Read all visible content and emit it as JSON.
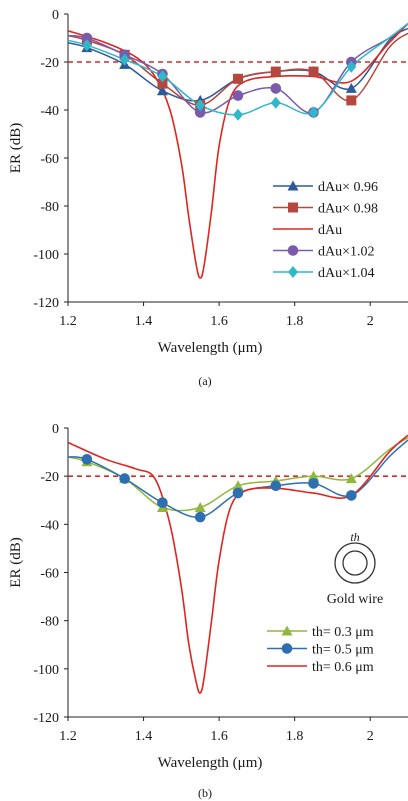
{
  "chart_data": [
    {
      "type": "line",
      "panel_label": "(a)",
      "xlabel": "Wavelength (μm)",
      "ylabel": "ER (dB)",
      "xlim": [
        1.2,
        2.1
      ],
      "ylim": [
        -120,
        0
      ],
      "xticks": [
        1.2,
        1.4,
        1.6,
        1.8,
        2.0
      ],
      "xtick_labels": [
        "1.2",
        "1.4",
        "1.6",
        "1.8",
        "2"
      ],
      "yticks": [
        0,
        -20,
        -40,
        -60,
        -80,
        -100,
        -120
      ],
      "ytick_labels": [
        "0",
        "-20",
        "-40",
        "-60",
        "-80",
        "-100",
        "-120"
      ],
      "reference_line": {
        "y": -20,
        "style": "dashed",
        "color": "#d42a2a"
      },
      "legend_position": "bottom-right",
      "series": [
        {
          "name": "dAu× 0.96",
          "color": "#2d5a98",
          "marker": "triangle",
          "x": [
            1.2,
            1.25,
            1.35,
            1.45,
            1.55,
            1.65,
            1.75,
            1.85,
            1.95,
            2.05,
            2.1
          ],
          "y": [
            -12,
            -14,
            -21,
            -32,
            -36,
            -27,
            -24,
            -24,
            -31,
            -11,
            -6
          ],
          "markers_x": [
            1.25,
            1.35,
            1.45,
            1.55,
            1.65,
            1.75,
            1.85,
            1.95
          ],
          "markers_y": [
            -14,
            -21,
            -32,
            -36,
            -27,
            -24,
            -24,
            -31
          ]
        },
        {
          "name": "dAu× 0.98",
          "color": "#b5473f",
          "marker": "square",
          "x": [
            1.2,
            1.25,
            1.35,
            1.45,
            1.55,
            1.65,
            1.75,
            1.85,
            1.95,
            2.05,
            2.1
          ],
          "y": [
            -9,
            -11,
            -17,
            -29,
            -38,
            -27,
            -24,
            -24,
            -36,
            -14,
            -8
          ],
          "markers_x": [
            1.25,
            1.35,
            1.45,
            1.55,
            1.65,
            1.75,
            1.85,
            1.95
          ],
          "markers_y": [
            -11,
            -17,
            -29,
            -38,
            -27,
            -24,
            -24,
            -36
          ]
        },
        {
          "name": "dAu",
          "color": "#e02520",
          "marker": "none",
          "x": [
            1.2,
            1.3,
            1.38,
            1.43,
            1.47,
            1.5,
            1.52,
            1.54,
            1.55,
            1.56,
            1.58,
            1.6,
            1.63,
            1.67,
            1.75,
            1.85,
            1.95,
            2.05,
            2.1
          ],
          "y": [
            -7,
            -12,
            -18,
            -26,
            -40,
            -62,
            -85,
            -105,
            -110,
            -105,
            -82,
            -55,
            -35,
            -28,
            -26,
            -26,
            -28,
            -12,
            -4
          ]
        },
        {
          "name": "dAu×1.02",
          "color": "#7a5bab",
          "marker": "circle",
          "x": [
            1.2,
            1.25,
            1.35,
            1.45,
            1.55,
            1.65,
            1.75,
            1.85,
            1.95,
            2.05,
            2.1
          ],
          "y": [
            -9,
            -10,
            -17,
            -25,
            -41,
            -34,
            -31,
            -41,
            -20,
            -10,
            -4
          ],
          "markers_x": [
            1.25,
            1.35,
            1.45,
            1.55,
            1.65,
            1.75,
            1.85,
            1.95
          ],
          "markers_y": [
            -10,
            -17,
            -25,
            -41,
            -34,
            -31,
            -41,
            -20
          ]
        },
        {
          "name": "dAu×1.04",
          "color": "#2fb8c9",
          "marker": "diamond",
          "x": [
            1.2,
            1.25,
            1.35,
            1.45,
            1.55,
            1.65,
            1.75,
            1.85,
            1.95,
            2.05,
            2.1
          ],
          "y": [
            -11,
            -13,
            -19,
            -26,
            -38,
            -42,
            -37,
            -41,
            -22,
            -10,
            -4
          ],
          "markers_x": [
            1.25,
            1.35,
            1.45,
            1.55,
            1.65,
            1.75,
            1.85,
            1.95
          ],
          "markers_y": [
            -13,
            -19,
            -26,
            -38,
            -42,
            -37,
            -41,
            -22
          ]
        }
      ]
    },
    {
      "type": "line",
      "panel_label": "(b)",
      "xlabel": "Wavelength (μm)",
      "ylabel": "ER (dB)",
      "xlim": [
        1.2,
        2.1
      ],
      "ylim": [
        -120,
        0
      ],
      "xticks": [
        1.2,
        1.4,
        1.6,
        1.8,
        2.0
      ],
      "xtick_labels": [
        "1.2",
        "1.4",
        "1.6",
        "1.8",
        "2"
      ],
      "yticks": [
        0,
        -20,
        -40,
        -60,
        -80,
        -100,
        -120
      ],
      "ytick_labels": [
        "0",
        "-20",
        "-40",
        "-60",
        "-80",
        "-100",
        "-120"
      ],
      "reference_line": {
        "y": -20,
        "style": "dashed",
        "color": "#d42a2a"
      },
      "legend_position": "bottom-right",
      "inset": {
        "symbol_label": "th",
        "caption": "Gold wire"
      },
      "series": [
        {
          "name": "th= 0.3 μm",
          "color": "#8fb83c",
          "marker": "triangle",
          "x": [
            1.2,
            1.25,
            1.35,
            1.45,
            1.55,
            1.65,
            1.75,
            1.85,
            1.95,
            2.05,
            2.1
          ],
          "y": [
            -12,
            -14,
            -21,
            -33,
            -33,
            -24,
            -22,
            -20,
            -21,
            -9,
            -4
          ],
          "markers_x": [
            1.25,
            1.35,
            1.45,
            1.55,
            1.65,
            1.75,
            1.85,
            1.95
          ],
          "markers_y": [
            -14,
            -21,
            -33,
            -33,
            -24,
            -22,
            -20,
            -21
          ]
        },
        {
          "name": "th= 0.5 μm",
          "color": "#2d6fb0",
          "marker": "circle",
          "x": [
            1.2,
            1.25,
            1.35,
            1.45,
            1.55,
            1.65,
            1.75,
            1.85,
            1.95,
            2.05,
            2.1
          ],
          "y": [
            -12,
            -13,
            -21,
            -31,
            -37,
            -27,
            -24,
            -23,
            -28,
            -12,
            -5
          ],
          "markers_x": [
            1.25,
            1.35,
            1.45,
            1.55,
            1.65,
            1.75,
            1.85,
            1.95
          ],
          "markers_y": [
            -13,
            -21,
            -31,
            -37,
            -27,
            -24,
            -23,
            -28
          ]
        },
        {
          "name": "th= 0.6 μm",
          "color": "#e02520",
          "marker": "none",
          "x": [
            1.2,
            1.3,
            1.38,
            1.43,
            1.47,
            1.5,
            1.52,
            1.54,
            1.55,
            1.56,
            1.58,
            1.6,
            1.63,
            1.67,
            1.75,
            1.85,
            1.95,
            2.05,
            2.1
          ],
          "y": [
            -6,
            -13,
            -17,
            -21,
            -40,
            -66,
            -90,
            -106,
            -110,
            -104,
            -80,
            -55,
            -33,
            -26,
            -25,
            -27,
            -28,
            -10,
            -3
          ]
        }
      ]
    }
  ]
}
